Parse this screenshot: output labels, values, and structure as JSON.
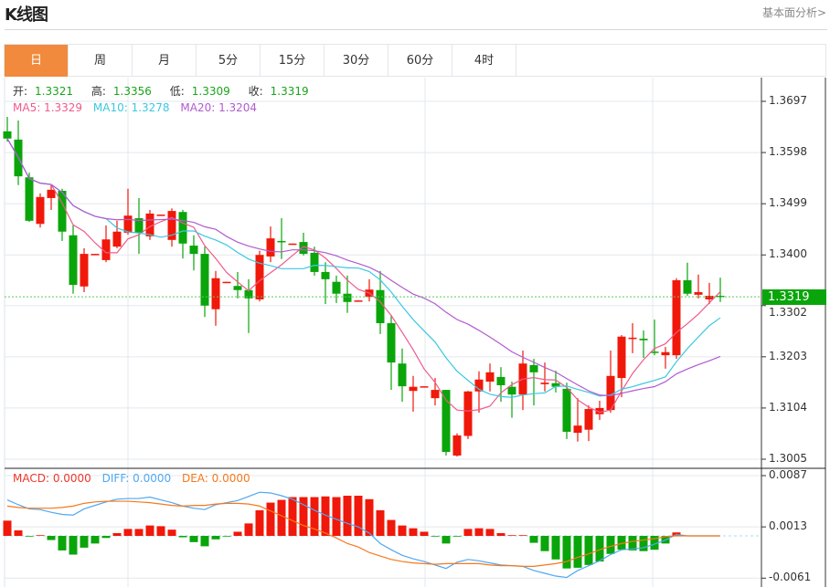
{
  "header": {
    "title": "K线图",
    "link": "基本面分析>"
  },
  "tabs": [
    {
      "label": "日",
      "active": true
    },
    {
      "label": "周"
    },
    {
      "label": "月"
    },
    {
      "label": "5分"
    },
    {
      "label": "15分"
    },
    {
      "label": "30分"
    },
    {
      "label": "60分"
    },
    {
      "label": "4时"
    }
  ],
  "ohlc_legend": {
    "open_label": "开:",
    "open": "1.3321",
    "high_label": "高:",
    "high": "1.3356",
    "low_label": "低:",
    "low": "1.3309",
    "close_label": "收:",
    "close": "1.3319"
  },
  "ma_legend": {
    "ma5": "MA5: 1.3329",
    "ma10": "MA10: 1.3278",
    "ma20": "MA20: 1.3204"
  },
  "macd_legend": {
    "macd": "MACD: 0.0000",
    "diff": "DIFF: 0.0000",
    "dea": "DEA: 0.0000"
  },
  "last_price": "1.3319",
  "colors": {
    "up": "#f0180a",
    "down": "#0aa50a",
    "ma5": "#ef5a8c",
    "ma10": "#3cc8e2",
    "ma20": "#b25ad0",
    "diff": "#4fa8f2",
    "dea": "#f7781c",
    "active_tab": "#f18a3c"
  },
  "chart_data": [
    {
      "type": "candlestick",
      "ylim": [
        1.3005,
        1.3697
      ],
      "y_ticks": [
        "1.3697",
        "1.3598",
        "1.3499",
        "1.3400",
        "1.3302",
        "1.3203",
        "1.3104",
        "1.3005"
      ],
      "y_tick_values": [
        1.3697,
        1.3598,
        1.3499,
        1.34,
        1.3302,
        1.3203,
        1.3104,
        1.3005
      ],
      "grid": true,
      "ohlc_fields": [
        "open",
        "high",
        "low",
        "close"
      ],
      "candles": [
        [
          1.3639,
          1.3667,
          1.3619,
          1.3625
        ],
        [
          1.3623,
          1.366,
          1.3535,
          1.3552
        ],
        [
          1.355,
          1.3559,
          1.3464,
          1.3466
        ],
        [
          1.346,
          1.3519,
          1.3453,
          1.3512
        ],
        [
          1.351,
          1.3536,
          1.3487,
          1.3526
        ],
        [
          1.3524,
          1.3528,
          1.3427,
          1.3445
        ],
        [
          1.3438,
          1.3457,
          1.3325,
          1.3342
        ],
        [
          1.3339,
          1.3413,
          1.3328,
          1.3402
        ],
        [
          1.3401,
          1.3402,
          1.3401,
          1.3402
        ],
        [
          1.339,
          1.3457,
          1.3386,
          1.343
        ],
        [
          1.3416,
          1.3466,
          1.3413,
          1.3445
        ],
        [
          1.3443,
          1.3528,
          1.3439,
          1.3476
        ],
        [
          1.3471,
          1.351,
          1.3402,
          1.3443
        ],
        [
          1.3436,
          1.3487,
          1.3429,
          1.348
        ],
        [
          1.3477,
          1.3478,
          1.3477,
          1.3478
        ],
        [
          1.3429,
          1.349,
          1.3416,
          1.3485
        ],
        [
          1.3483,
          1.3487,
          1.3393,
          1.3422
        ],
        [
          1.3418,
          1.3438,
          1.337,
          1.3402
        ],
        [
          1.3402,
          1.3416,
          1.328,
          1.3302
        ],
        [
          1.3295,
          1.3369,
          1.3263,
          1.3355
        ],
        [
          1.3347,
          1.3348,
          1.3347,
          1.3348
        ],
        [
          1.334,
          1.3367,
          1.3316,
          1.3332
        ],
        [
          1.3332,
          1.3353,
          1.3249,
          1.3316
        ],
        [
          1.3314,
          1.3408,
          1.331,
          1.34
        ],
        [
          1.3397,
          1.3455,
          1.3386,
          1.3432
        ],
        [
          1.3427,
          1.3471,
          1.3392,
          1.3425
        ],
        [
          1.3421,
          1.3422,
          1.3421,
          1.3422
        ],
        [
          1.3425,
          1.3443,
          1.3399,
          1.3402
        ],
        [
          1.3404,
          1.3416,
          1.336,
          1.3367
        ],
        [
          1.3367,
          1.3386,
          1.3305,
          1.3353
        ],
        [
          1.3348,
          1.336,
          1.3307,
          1.3325
        ],
        [
          1.3325,
          1.336,
          1.3288,
          1.3309
        ],
        [
          1.3311,
          1.3312,
          1.3311,
          1.3312
        ],
        [
          1.3319,
          1.3353,
          1.331,
          1.3333
        ],
        [
          1.3332,
          1.3369,
          1.3247,
          1.3268
        ],
        [
          1.3268,
          1.3284,
          1.3139,
          1.3192
        ],
        [
          1.319,
          1.3219,
          1.3116,
          1.3146
        ],
        [
          1.3137,
          1.3166,
          1.3097,
          1.3145
        ],
        [
          1.3145,
          1.3146,
          1.3145,
          1.3146
        ],
        [
          1.3123,
          1.3162,
          1.3109,
          1.3139
        ],
        [
          1.3139,
          1.3139,
          1.3012,
          1.3019
        ],
        [
          1.3012,
          1.3055,
          1.301,
          1.3051
        ],
        [
          1.305,
          1.3137,
          1.3044,
          1.3136
        ],
        [
          1.3136,
          1.3175,
          1.3095,
          1.3159
        ],
        [
          1.3155,
          1.319,
          1.3136,
          1.3173
        ],
        [
          1.3164,
          1.3183,
          1.3116,
          1.3148
        ],
        [
          1.3145,
          1.3155,
          1.3085,
          1.313
        ],
        [
          1.313,
          1.3215,
          1.31,
          1.319
        ],
        [
          1.3187,
          1.3199,
          1.3109,
          1.3173
        ],
        [
          1.315,
          1.3192,
          1.3136,
          1.3153
        ],
        [
          1.3152,
          1.3176,
          1.3134,
          1.3145
        ],
        [
          1.3141,
          1.3153,
          1.3044,
          1.3058
        ],
        [
          1.3056,
          1.3123,
          1.3039,
          1.307
        ],
        [
          1.3062,
          1.3109,
          1.304,
          1.3102
        ],
        [
          1.3092,
          1.3118,
          1.3081,
          1.3104
        ],
        [
          1.31,
          1.3215,
          1.3095,
          1.3166
        ],
        [
          1.3162,
          1.3245,
          1.3125,
          1.3242
        ],
        [
          1.3238,
          1.3268,
          1.321,
          1.324
        ],
        [
          1.3238,
          1.3254,
          1.3201,
          1.3235
        ],
        [
          1.3213,
          1.3275,
          1.3206,
          1.3212
        ],
        [
          1.3206,
          1.3222,
          1.318,
          1.3212
        ],
        [
          1.3206,
          1.3355,
          1.3199,
          1.3351
        ],
        [
          1.3351,
          1.3385,
          1.3321,
          1.3325
        ],
        [
          1.3323,
          1.3362,
          1.3316,
          1.3328
        ],
        [
          1.3314,
          1.3346,
          1.3305,
          1.3321
        ],
        [
          1.3321,
          1.3356,
          1.3309,
          1.3319
        ]
      ],
      "series": [
        {
          "name": "MA5",
          "period": 5
        },
        {
          "name": "MA10",
          "period": 10
        },
        {
          "name": "MA20",
          "period": 20
        }
      ]
    },
    {
      "type": "bar+line",
      "ylim": [
        -0.0061,
        0.0087
      ],
      "y_ticks": [
        "0.0087",
        "0.0013",
        "-0.0061"
      ],
      "y_tick_values": [
        0.0087,
        0.0013,
        -0.0061
      ],
      "grid": true,
      "macd": [
        0.0022,
        0.0008,
        -0.0001,
        0.0001,
        -0.0006,
        -0.0021,
        -0.0027,
        -0.0017,
        -0.0011,
        -0.0003,
        0.0004,
        0.001,
        0.001,
        0.0015,
        0.0014,
        0.0009,
        -0.0002,
        -0.0009,
        -0.0015,
        -0.0005,
        -0.0001,
        0.0006,
        0.0018,
        0.0037,
        0.0048,
        0.0052,
        0.0056,
        0.0056,
        0.0056,
        0.0057,
        0.0056,
        0.0058,
        0.0058,
        0.0053,
        0.0037,
        0.0023,
        0.0015,
        0.0011,
        0.0006,
        -0.0001,
        -0.0011,
        -0.0001,
        0.001,
        0.0011,
        0.001,
        0.0004,
        0.0001,
        0.0001,
        -0.001,
        -0.0022,
        -0.0034,
        -0.0047,
        -0.0046,
        -0.0042,
        -0.0037,
        -0.0026,
        -0.002,
        -0.0021,
        -0.0022,
        -0.002,
        -0.0011,
        0.0005,
        0,
        0,
        0,
        0
      ],
      "diff": [
        0.0052,
        0.0045,
        0.0039,
        0.0038,
        0.0034,
        0.0031,
        0.003,
        0.0039,
        0.0044,
        0.0049,
        0.0053,
        0.0054,
        0.0054,
        0.0056,
        0.0052,
        0.0048,
        0.0043,
        0.004,
        0.0038,
        0.0045,
        0.0048,
        0.0051,
        0.0057,
        0.0063,
        0.0062,
        0.0058,
        0.0053,
        0.0045,
        0.0037,
        0.003,
        0.0024,
        0.0018,
        0.0013,
        0.0004,
        -0.0011,
        -0.002,
        -0.0028,
        -0.0033,
        -0.0037,
        -0.0042,
        -0.0047,
        -0.0038,
        -0.0034,
        -0.0036,
        -0.0039,
        -0.0042,
        -0.0043,
        -0.0044,
        -0.005,
        -0.0054,
        -0.0058,
        -0.006,
        -0.005,
        -0.0043,
        -0.0036,
        -0.0027,
        -0.002,
        -0.0019,
        -0.0017,
        -0.0012,
        -0.0006,
        0.0002,
        0,
        0,
        0,
        0
      ],
      "dea": [
        0.0043,
        0.0041,
        0.004,
        0.004,
        0.004,
        0.0041,
        0.0043,
        0.0047,
        0.0049,
        0.005,
        0.005,
        0.005,
        0.0049,
        0.0048,
        0.0046,
        0.0044,
        0.0043,
        0.0044,
        0.0044,
        0.0046,
        0.0047,
        0.0047,
        0.0046,
        0.0043,
        0.0036,
        0.0029,
        0.0022,
        0.0015,
        0.001,
        0.0004,
        -0.0003,
        -0.0011,
        -0.0016,
        -0.0024,
        -0.0029,
        -0.0034,
        -0.0037,
        -0.0039,
        -0.004,
        -0.0041,
        -0.004,
        -0.004,
        -0.004,
        -0.004,
        -0.0042,
        -0.0043,
        -0.0043,
        -0.0044,
        -0.0044,
        -0.0042,
        -0.004,
        -0.0037,
        -0.0031,
        -0.0026,
        -0.002,
        -0.0015,
        -0.0011,
        -0.0008,
        -0.0006,
        -0.0004,
        -0.0001,
        0.0,
        0,
        0,
        0,
        0
      ]
    }
  ]
}
